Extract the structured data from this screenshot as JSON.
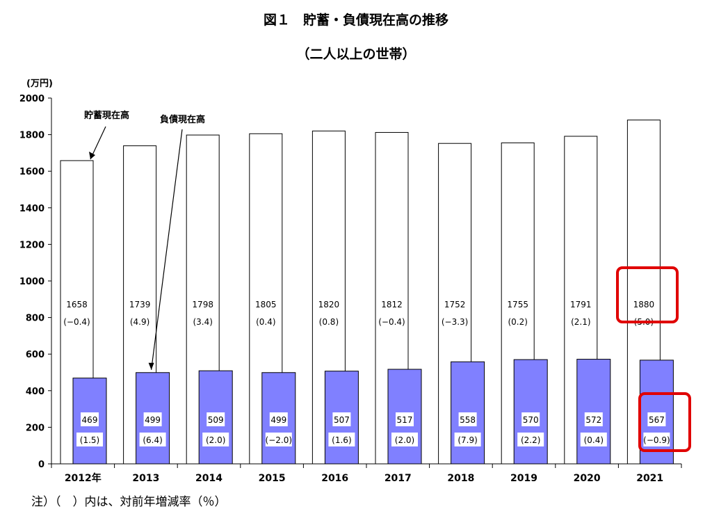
{
  "title": "図１　貯蓄・負債現在高の推移",
  "subtitle": "（二人以上の世帯）",
  "note": "注）（　）内は、対前年増減率（％）",
  "chart_data": {
    "type": "bar",
    "unit_label": "(万円)",
    "ylim": [
      0,
      2000
    ],
    "yticks": [
      "0",
      "200",
      "400",
      "600",
      "800",
      "1000",
      "1200",
      "1400",
      "1600",
      "1800",
      "2000"
    ],
    "categories": [
      "2012年",
      "2013",
      "2014",
      "2015",
      "2016",
      "2017",
      "2018",
      "2019",
      "2020",
      "2021"
    ],
    "series": [
      {
        "name": "貯蓄現在高",
        "color": "#ffffff",
        "values": [
          1658,
          1739,
          1798,
          1805,
          1820,
          1812,
          1752,
          1755,
          1791,
          1880
        ],
        "labels": [
          "1658",
          "1739",
          "1798",
          "1805",
          "1820",
          "1812",
          "1752",
          "1755",
          "1791",
          "1880"
        ],
        "changes": [
          "(−0.4)",
          "(4.9)",
          "(3.4)",
          "(0.4)",
          "(0.8)",
          "(−0.4)",
          "(−3.3)",
          "(0.2)",
          "(2.1)",
          "(5.0)"
        ]
      },
      {
        "name": "負債現在高",
        "color": "#8080ff",
        "values": [
          469,
          499,
          509,
          499,
          507,
          517,
          558,
          570,
          572,
          567
        ],
        "labels": [
          "469",
          "499",
          "509",
          "499",
          "507",
          "517",
          "558",
          "570",
          "572",
          "567"
        ],
        "changes": [
          "(1.5)",
          "(6.4)",
          "(2.0)",
          "(−2.0)",
          "(1.6)",
          "(2.0)",
          "(7.9)",
          "(2.2)",
          "(0.4)",
          "(−0.9)"
        ]
      }
    ],
    "highlight_color": "#e00000",
    "highlight_category": "2021"
  }
}
